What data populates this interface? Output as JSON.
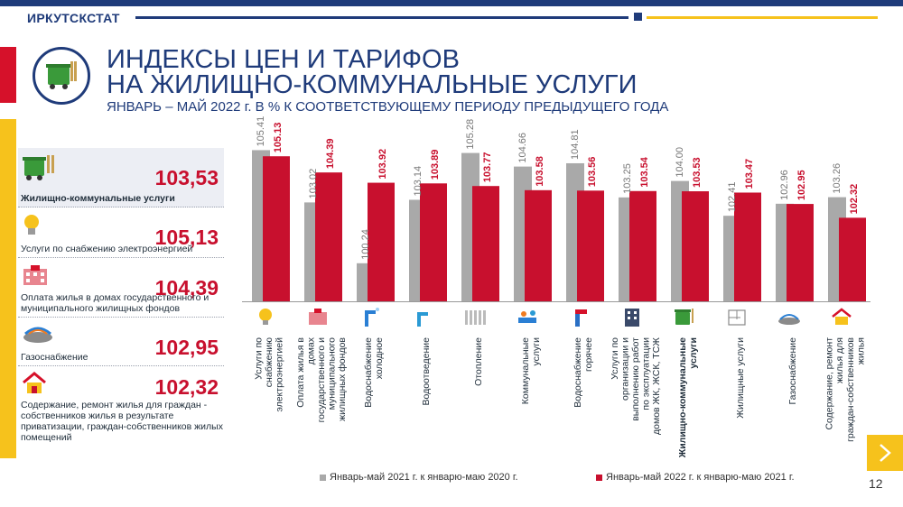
{
  "header": {
    "brand": "ИРКУТСКСТАТ",
    "title_line1": "ИНДЕКСЫ ЦЕН И ТАРИФОВ",
    "title_line2": "НА ЖИЛИЩНО-КОММУНАЛЬНЫЕ УСЛУГИ",
    "subtitle": "ЯНВАРЬ – МАЙ 2022 г. В % К СООТВЕТСТВУЮЩЕМУ ПЕРИОДУ ПРЕДЫДУЩЕГО ГОДА"
  },
  "kpis": [
    {
      "value": "103,53",
      "label": "Жилищно-коммунальные услуги",
      "icon": "waste-bin-icon"
    },
    {
      "value": "105,13",
      "label": "Услуги по снабжению электроэнергией",
      "icon": "light-bulb-icon"
    },
    {
      "value": "104,39",
      "label": "Оплата жилья в домах государственного и муниципального жилищных фондов",
      "icon": "building-icon"
    },
    {
      "value": "102,95",
      "label": "Газоснабжение",
      "icon": "gas-burner-icon"
    },
    {
      "value": "102,32",
      "label": "Содержание, ремонт жилья для граждан - собственников жилья в результате приватизации, граждан-собственников жилых помещений",
      "icon": "house-repair-icon"
    }
  ],
  "chart_data": {
    "type": "bar",
    "categories": [
      "Услуги по снабжению электроэнергией",
      "Оплата жилья в домах государственного и муниципального жилищных фондов",
      "Водоснабжение холодное",
      "Водоотведение",
      "Отопление",
      "Коммунальные услуги",
      "Водоснабжение горячее",
      "Услуги по организации и выполнению работ по эксплуатации домов ЖК, ЖСК, ТСЖ",
      "Жилищно-коммунальные услуги",
      "Жилищные услуги",
      "Газоснабжение",
      "Содержание, ремонт жилья для граждан-собственников жилья"
    ],
    "series": [
      {
        "name": "Январь-май 2021 г. к январю-маю 2020 г.",
        "color": "#a9a9a9",
        "values": [
          105.41,
          103.02,
          100.24,
          103.14,
          105.28,
          104.66,
          104.81,
          103.25,
          104.0,
          102.41,
          102.96,
          103.26
        ],
        "labels": [
          "105.41",
          "103.02",
          "100.24",
          "103.14",
          "105.28",
          "104.66",
          "104.81",
          "103.25",
          "104.00",
          "102.41",
          "102.96",
          "103.26"
        ]
      },
      {
        "name": "Январь-май 2022 г. к январю-маю 2021 г.",
        "color": "#c8102e",
        "values": [
          105.13,
          104.39,
          103.92,
          103.89,
          103.77,
          103.58,
          103.56,
          103.54,
          103.53,
          103.47,
          102.95,
          102.32
        ],
        "labels": [
          "105.13",
          "104.39",
          "103.92",
          "103.89",
          "103.77",
          "103.58",
          "103.56",
          "103.54",
          "103.53",
          "103.47",
          "102.95",
          "102.32"
        ]
      }
    ],
    "ylim": [
      98.5,
      106.5
    ],
    "icons": [
      "light-bulb-icon",
      "building-icon",
      "cold-water-icon",
      "drain-pipe-icon",
      "radiator-icon",
      "utilities-icon",
      "hot-water-icon",
      "apartment-icon",
      "waste-bin-icon",
      "floor-plan-icon",
      "gas-burner-icon",
      "house-repair-icon"
    ]
  },
  "footer": {
    "page_number": "12"
  }
}
